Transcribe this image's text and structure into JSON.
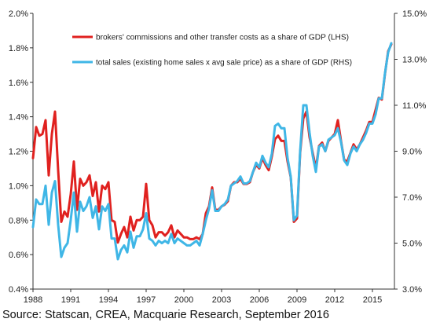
{
  "chart_data": {
    "type": "line",
    "title": "",
    "xlabel": "",
    "ylabel": "",
    "x_start": 1988,
    "x_end": 2016.75,
    "x_ticks": [
      "1988",
      "1991",
      "1994",
      "1997",
      "2000",
      "2003",
      "2006",
      "2009",
      "2012",
      "2015"
    ],
    "ylim_left": [
      0.4,
      2.0
    ],
    "y_ticks_left": [
      "0.4%",
      "0.6%",
      "0.8%",
      "1.0%",
      "1.2%",
      "1.4%",
      "1.6%",
      "1.8%",
      "2.0%"
    ],
    "ylim_right": [
      3.0,
      15.0
    ],
    "y_ticks_right": [
      "3.0%",
      "5.0%",
      "7.0%",
      "9.0%",
      "11.0%",
      "13.0%",
      "15.0%"
    ],
    "grid": false,
    "legend_position": "top-left",
    "series": [
      {
        "name": "brokers' commissions and other transfer costs as a share of GDP (LHS)",
        "color": "#e0211f",
        "axis": "left",
        "points": [
          [
            1988.0,
            1.16
          ],
          [
            1988.25,
            1.34
          ],
          [
            1988.5,
            1.29
          ],
          [
            1988.75,
            1.3
          ],
          [
            1989.0,
            1.38
          ],
          [
            1989.25,
            1.06
          ],
          [
            1989.5,
            1.3
          ],
          [
            1989.75,
            1.43
          ],
          [
            1990.0,
            1.09
          ],
          [
            1990.25,
            0.79
          ],
          [
            1990.5,
            0.85
          ],
          [
            1990.75,
            0.82
          ],
          [
            1991.0,
            0.95
          ],
          [
            1991.25,
            1.14
          ],
          [
            1991.5,
            0.86
          ],
          [
            1991.75,
            1.04
          ],
          [
            1992.0,
            1.0
          ],
          [
            1992.25,
            1.02
          ],
          [
            1992.5,
            1.06
          ],
          [
            1992.75,
            0.94
          ],
          [
            1993.0,
            1.02
          ],
          [
            1993.25,
            0.85
          ],
          [
            1993.5,
            1.0
          ],
          [
            1993.75,
            0.98
          ],
          [
            1994.0,
            1.02
          ],
          [
            1994.25,
            0.8
          ],
          [
            1994.5,
            0.79
          ],
          [
            1994.75,
            0.67
          ],
          [
            1995.0,
            0.72
          ],
          [
            1995.25,
            0.76
          ],
          [
            1995.5,
            0.7
          ],
          [
            1995.75,
            0.82
          ],
          [
            1996.0,
            0.74
          ],
          [
            1996.25,
            0.8
          ],
          [
            1996.5,
            0.8
          ],
          [
            1996.75,
            0.82
          ],
          [
            1997.0,
            1.01
          ],
          [
            1997.25,
            0.8
          ],
          [
            1997.5,
            0.77
          ],
          [
            1997.75,
            0.7
          ],
          [
            1998.0,
            0.73
          ],
          [
            1998.25,
            0.73
          ],
          [
            1998.5,
            0.71
          ],
          [
            1998.75,
            0.73
          ],
          [
            1999.0,
            0.77
          ],
          [
            1999.25,
            0.7
          ],
          [
            1999.5,
            0.74
          ],
          [
            1999.75,
            0.72
          ],
          [
            2000.0,
            0.7
          ],
          [
            2000.25,
            0.7
          ],
          [
            2000.5,
            0.69
          ],
          [
            2000.75,
            0.69
          ],
          [
            2001.0,
            0.7
          ],
          [
            2001.25,
            0.69
          ],
          [
            2001.5,
            0.72
          ],
          [
            2001.75,
            0.84
          ],
          [
            2002.0,
            0.88
          ],
          [
            2002.25,
            0.99
          ],
          [
            2002.5,
            0.86
          ],
          [
            2002.75,
            0.86
          ],
          [
            2003.0,
            0.88
          ],
          [
            2003.25,
            0.89
          ],
          [
            2003.5,
            0.91
          ],
          [
            2003.75,
            1.0
          ],
          [
            2004.0,
            1.02
          ],
          [
            2004.25,
            1.02
          ],
          [
            2004.5,
            1.04
          ],
          [
            2004.75,
            1.01
          ],
          [
            2005.0,
            1.01
          ],
          [
            2005.25,
            1.02
          ],
          [
            2005.5,
            1.08
          ],
          [
            2005.75,
            1.12
          ],
          [
            2006.0,
            1.1
          ],
          [
            2006.25,
            1.16
          ],
          [
            2006.5,
            1.12
          ],
          [
            2006.75,
            1.09
          ],
          [
            2007.0,
            1.17
          ],
          [
            2007.25,
            1.27
          ],
          [
            2007.5,
            1.29
          ],
          [
            2007.75,
            1.26
          ],
          [
            2008.0,
            1.26
          ],
          [
            2008.25,
            1.14
          ],
          [
            2008.5,
            1.05
          ],
          [
            2008.75,
            0.79
          ],
          [
            2009.0,
            0.81
          ],
          [
            2009.25,
            1.19
          ],
          [
            2009.5,
            1.39
          ],
          [
            2009.75,
            1.43
          ],
          [
            2010.0,
            1.28
          ],
          [
            2010.25,
            1.19
          ],
          [
            2010.5,
            1.1
          ],
          [
            2010.75,
            1.23
          ],
          [
            2011.0,
            1.25
          ],
          [
            2011.25,
            1.2
          ],
          [
            2011.5,
            1.26
          ],
          [
            2011.75,
            1.28
          ],
          [
            2012.0,
            1.3
          ],
          [
            2012.25,
            1.38
          ],
          [
            2012.5,
            1.26
          ],
          [
            2012.75,
            1.15
          ],
          [
            2013.0,
            1.14
          ],
          [
            2013.25,
            1.19
          ],
          [
            2013.5,
            1.24
          ],
          [
            2013.75,
            1.21
          ],
          [
            2014.0,
            1.24
          ],
          [
            2014.25,
            1.28
          ],
          [
            2014.5,
            1.32
          ],
          [
            2014.75,
            1.37
          ],
          [
            2015.0,
            1.37
          ],
          [
            2015.25,
            1.44
          ],
          [
            2015.5,
            1.51
          ],
          [
            2015.75,
            1.5
          ],
          [
            2016.0,
            1.65
          ],
          [
            2016.25,
            1.78
          ],
          [
            2016.5,
            1.82
          ]
        ]
      },
      {
        "name": "total sales (existing home sales x avg sale price) as a share of GDP (RHS)",
        "color": "#3fb6e6",
        "axis": "right",
        "points": [
          [
            1988.0,
            5.7
          ],
          [
            1988.25,
            6.9
          ],
          [
            1988.5,
            6.7
          ],
          [
            1988.75,
            6.7
          ],
          [
            1989.0,
            7.5
          ],
          [
            1989.25,
            5.8
          ],
          [
            1989.5,
            7.2
          ],
          [
            1989.75,
            7.7
          ],
          [
            1990.0,
            5.8
          ],
          [
            1990.25,
            4.4
          ],
          [
            1990.5,
            4.8
          ],
          [
            1990.75,
            5.0
          ],
          [
            1991.0,
            6.0
          ],
          [
            1991.25,
            7.2
          ],
          [
            1991.5,
            5.5
          ],
          [
            1991.75,
            6.8
          ],
          [
            1992.0,
            6.4
          ],
          [
            1992.25,
            6.6
          ],
          [
            1992.5,
            7.0
          ],
          [
            1992.75,
            6.1
          ],
          [
            1993.0,
            6.6
          ],
          [
            1993.25,
            5.6
          ],
          [
            1993.5,
            6.6
          ],
          [
            1993.75,
            6.4
          ],
          [
            1994.0,
            6.7
          ],
          [
            1994.25,
            5.2
          ],
          [
            1994.5,
            5.2
          ],
          [
            1994.75,
            4.3
          ],
          [
            1995.0,
            4.7
          ],
          [
            1995.25,
            4.9
          ],
          [
            1995.5,
            4.6
          ],
          [
            1995.75,
            5.5
          ],
          [
            1996.0,
            4.8
          ],
          [
            1996.25,
            5.3
          ],
          [
            1996.5,
            5.3
          ],
          [
            1996.75,
            5.6
          ],
          [
            1997.0,
            6.3
          ],
          [
            1997.25,
            5.2
          ],
          [
            1997.5,
            5.1
          ],
          [
            1997.75,
            4.9
          ],
          [
            1998.0,
            5.1
          ],
          [
            1998.25,
            5.0
          ],
          [
            1998.5,
            5.1
          ],
          [
            1998.75,
            5.0
          ],
          [
            1999.0,
            5.4
          ],
          [
            1999.25,
            5.0
          ],
          [
            1999.5,
            5.2
          ],
          [
            1999.75,
            5.1
          ],
          [
            2000.0,
            5.0
          ],
          [
            2000.25,
            4.9
          ],
          [
            2000.5,
            4.9
          ],
          [
            2000.75,
            5.0
          ],
          [
            2001.0,
            5.1
          ],
          [
            2001.25,
            4.9
          ],
          [
            2001.5,
            5.4
          ],
          [
            2001.75,
            6.0
          ],
          [
            2002.0,
            6.5
          ],
          [
            2002.25,
            7.3
          ],
          [
            2002.5,
            6.4
          ],
          [
            2002.75,
            6.4
          ],
          [
            2003.0,
            6.6
          ],
          [
            2003.25,
            6.7
          ],
          [
            2003.5,
            6.9
          ],
          [
            2003.75,
            7.5
          ],
          [
            2004.0,
            7.6
          ],
          [
            2004.25,
            7.7
          ],
          [
            2004.5,
            7.9
          ],
          [
            2004.75,
            7.6
          ],
          [
            2005.0,
            7.6
          ],
          [
            2005.25,
            7.7
          ],
          [
            2005.5,
            8.1
          ],
          [
            2005.75,
            8.5
          ],
          [
            2006.0,
            8.3
          ],
          [
            2006.25,
            8.8
          ],
          [
            2006.5,
            8.5
          ],
          [
            2006.75,
            8.3
          ],
          [
            2007.0,
            8.9
          ],
          [
            2007.25,
            10.1
          ],
          [
            2007.5,
            10.2
          ],
          [
            2007.75,
            10.0
          ],
          [
            2008.0,
            10.0
          ],
          [
            2008.25,
            8.7
          ],
          [
            2008.5,
            7.9
          ],
          [
            2008.75,
            6.0
          ],
          [
            2009.0,
            6.2
          ],
          [
            2009.25,
            9.0
          ],
          [
            2009.5,
            11.0
          ],
          [
            2009.75,
            11.0
          ],
          [
            2010.0,
            9.8
          ],
          [
            2010.25,
            8.8
          ],
          [
            2010.5,
            8.1
          ],
          [
            2010.75,
            9.2
          ],
          [
            2011.0,
            9.3
          ],
          [
            2011.25,
            9.0
          ],
          [
            2011.5,
            9.5
          ],
          [
            2011.75,
            9.6
          ],
          [
            2012.0,
            9.7
          ],
          [
            2012.25,
            10.0
          ],
          [
            2012.5,
            9.4
          ],
          [
            2012.75,
            8.6
          ],
          [
            2013.0,
            8.4
          ],
          [
            2013.25,
            8.9
          ],
          [
            2013.5,
            9.2
          ],
          [
            2013.75,
            9.0
          ],
          [
            2014.0,
            9.3
          ],
          [
            2014.25,
            9.5
          ],
          [
            2014.5,
            9.8
          ],
          [
            2014.75,
            10.2
          ],
          [
            2015.0,
            10.2
          ],
          [
            2015.25,
            10.6
          ],
          [
            2015.5,
            11.3
          ],
          [
            2015.75,
            11.3
          ],
          [
            2016.0,
            12.4
          ],
          [
            2016.25,
            13.3
          ],
          [
            2016.5,
            13.7
          ]
        ]
      }
    ]
  },
  "source_text": "Source: Statscan, CREA, Macquarie Research, September 2016"
}
